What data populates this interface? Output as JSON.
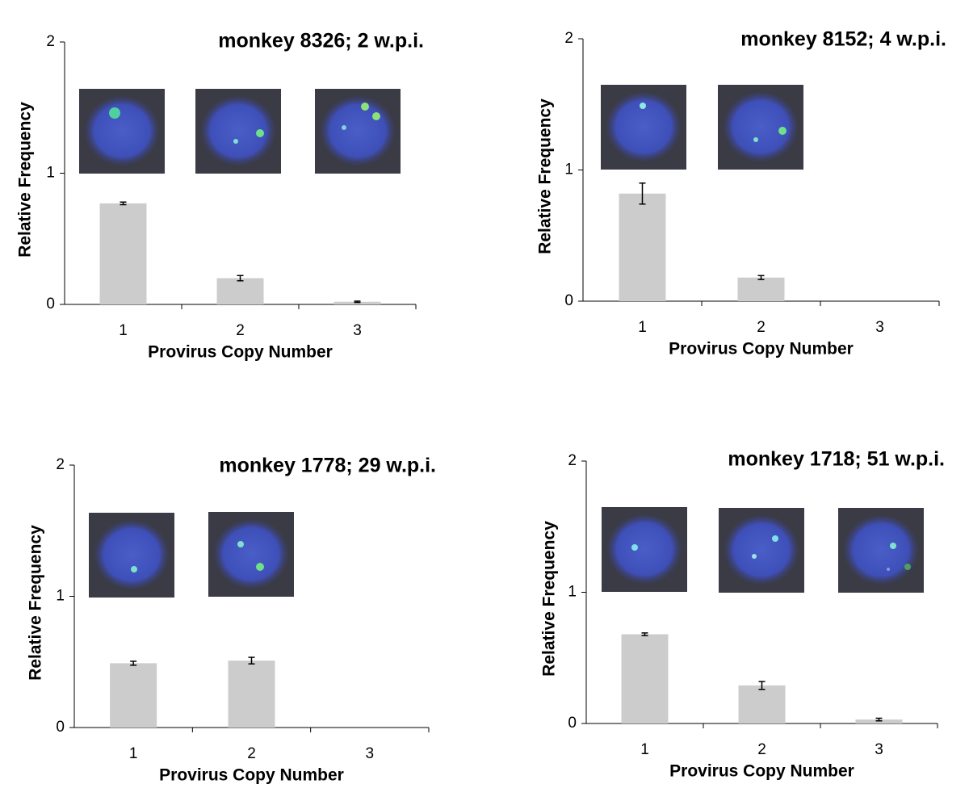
{
  "chart_data": [
    {
      "type": "bar",
      "title": "monkey 8326; 2 w.p.i.",
      "x_label": "Provirus Copy Number",
      "y_label": "Relative Frequency",
      "categories": [
        "1",
        "2",
        "3"
      ],
      "values": [
        0.77,
        0.2,
        0.02
      ],
      "errors": [
        0.01,
        0.02,
        0.005
      ],
      "color": "#cccccc",
      "ylim": [
        0,
        2
      ],
      "yticks": [
        0,
        1,
        2
      ]
    },
    {
      "type": "bar",
      "title": "monkey 8152; 4 w.p.i.",
      "x_label": "Provirus Copy Number",
      "y_label": "Relative Frequency",
      "categories": [
        "1",
        "2",
        "3"
      ],
      "values": [
        0.82,
        0.18,
        0
      ],
      "errors": [
        0.08,
        0.015,
        null
      ],
      "color": "#cccccc",
      "ylim": [
        0,
        2
      ],
      "yticks": [
        0,
        1,
        2
      ]
    },
    {
      "type": "bar",
      "title": "monkey 1778; 29 w.p.i.",
      "x_label": "Provirus Copy Number",
      "y_label": "Relative Frequency",
      "categories": [
        "1",
        "2",
        "3"
      ],
      "values": [
        0.49,
        0.51,
        0
      ],
      "errors": [
        0.015,
        0.025,
        null
      ],
      "color": "#cccccc",
      "ylim": [
        0,
        2
      ],
      "yticks": [
        0,
        1,
        2
      ]
    },
    {
      "type": "bar",
      "title": "monkey 1718; 51 w.p.i.",
      "x_label": "Provirus Copy Number",
      "y_label": "Relative Frequency",
      "categories": [
        "1",
        "2",
        "3"
      ],
      "values": [
        0.68,
        0.29,
        0.03
      ],
      "errors": [
        0.01,
        0.03,
        0.01
      ],
      "color": "#cccccc",
      "ylim": [
        0,
        2
      ],
      "yticks": [
        0,
        1,
        2
      ]
    }
  ]
}
